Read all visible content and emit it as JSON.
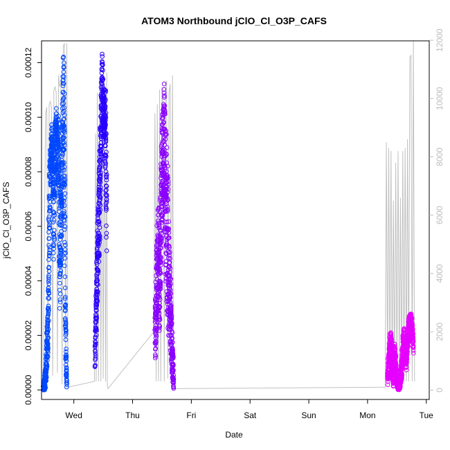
{
  "chart_data": {
    "type": "scatter",
    "title": "ATOM3 Northbound jClO_Cl_O3P_CAFS",
    "xlabel": "Date",
    "ylabel": "jClO_Cl_O3P_CAFS",
    "x_ticks": [
      "Wed",
      "Thu",
      "Fri",
      "Sat",
      "Sun",
      "Mon",
      "Tue"
    ],
    "x_tick_days": [
      1,
      2,
      3,
      4,
      5,
      6,
      7
    ],
    "xlim": [
      0.45,
      7.05
    ],
    "y_ticks": [
      "0.00000",
      "0.00002",
      "0.00004",
      "0.00006",
      "0.00008",
      "0.00010",
      "0.00012"
    ],
    "y_tick_values": [
      0,
      2e-05,
      4e-05,
      6e-05,
      8e-05,
      0.0001,
      0.00012
    ],
    "ylim": [
      -3.5e-06,
      0.000128
    ],
    "y2_ticks": [
      "0",
      "2000",
      "4000",
      "6000",
      "8000",
      "10000",
      "12000"
    ],
    "y2_tick_values": [
      0,
      2000,
      4000,
      6000,
      8000,
      10000,
      12000
    ],
    "y2lim": [
      -320,
      11980
    ],
    "grid": false,
    "colors": {
      "flight1": "#0047ff",
      "flight2": "#2800ff",
      "flight3": "#8a00ff",
      "flight4": "#e600ff",
      "altitude": "#c0c0c0"
    },
    "series": [
      {
        "flight": 1,
        "x": [
          0.48,
          0.5,
          0.52,
          0.54,
          0.56,
          0.58,
          0.6,
          0.62,
          0.64,
          0.66,
          0.68,
          0.7,
          0.72,
          0.74,
          0.76,
          0.78,
          0.8,
          0.82,
          0.84,
          0.86,
          0.88
        ],
        "y": [
          5e-07,
          2e-06,
          5e-06,
          1.5e-05,
          2.2e-05,
          6e-05,
          8e-05,
          9e-05,
          8.5e-05,
          6e-05,
          8.8e-05,
          9.9e-05,
          8.5e-05,
          8.6e-05,
          4.5e-05,
          6e-05,
          8e-05,
          0.000105,
          8.5e-05,
          2e-05,
          1e-06
        ],
        "spread": [
          1e-06,
          3e-06,
          4e-06,
          8e-06,
          1e-05,
          2e-05,
          1.2e-05,
          8e-06,
          1e-05,
          2e-05,
          1e-05,
          5e-06,
          1e-05,
          1.5e-05,
          2e-05,
          2e-05,
          2e-05,
          2e-05,
          3e-05,
          1e-05,
          1e-06
        ]
      },
      {
        "flight": 2,
        "x": [
          1.36,
          1.38,
          1.4,
          1.42,
          1.44,
          1.46,
          1.48,
          1.5,
          1.52,
          1.54,
          1.56
        ],
        "y": [
          1e-05,
          3e-05,
          4.5e-05,
          6e-05,
          7e-05,
          9.5e-05,
          0.00011,
          0.000103,
          0.0001,
          9e-05,
          6e-05
        ],
        "spread": [
          6e-06,
          1e-05,
          1.5e-05,
          1.5e-05,
          2e-05,
          1.5e-05,
          1.5e-05,
          1e-05,
          1e-05,
          2e-05,
          2e-05
        ]
      },
      {
        "flight": 3,
        "x": [
          2.38,
          2.4,
          2.42,
          2.44,
          2.46,
          2.48,
          2.5,
          2.52,
          2.54,
          2.56,
          2.58,
          2.6,
          2.62,
          2.64,
          2.66,
          2.68,
          2.7
        ],
        "y": [
          2e-05,
          3e-05,
          4.5e-05,
          5e-05,
          4e-05,
          6e-05,
          8e-05,
          8.5e-05,
          9.5e-05,
          7e-05,
          6.5e-05,
          5e-05,
          4e-05,
          3e-05,
          2e-05,
          1e-05,
          4e-06
        ],
        "spread": [
          1e-05,
          1.5e-05,
          2e-05,
          2e-05,
          2e-05,
          2e-05,
          2e-05,
          2e-05,
          2e-05,
          3e-05,
          3e-05,
          3e-05,
          2e-05,
          1.5e-05,
          1e-05,
          8e-06,
          4e-06
        ]
      },
      {
        "flight": 4,
        "x": [
          6.34,
          6.36,
          6.38,
          6.4,
          6.42,
          6.44,
          6.46,
          6.48,
          6.5,
          6.52,
          6.54,
          6.56,
          6.58,
          6.6,
          6.62,
          6.64,
          6.66,
          6.68,
          6.7,
          6.72,
          6.74,
          6.76,
          6.78
        ],
        "y": [
          4e-06,
          1e-05,
          1.5e-05,
          1.6e-05,
          1e-05,
          5e-06,
          1.2e-05,
          8e-06,
          3e-06,
          1e-06,
          2e-06,
          4e-06,
          8e-06,
          1.5e-05,
          2e-05,
          1.5e-05,
          1.2e-05,
          1.8e-05,
          2.2e-05,
          2.5e-05,
          2.6e-05,
          2.2e-05,
          1.6e-05
        ],
        "spread": [
          3e-06,
          5e-06,
          6e-06,
          5e-06,
          6e-06,
          4e-06,
          6e-06,
          5e-06,
          2e-06,
          1e-06,
          2e-06,
          3e-06,
          4e-06,
          5e-06,
          4e-06,
          5e-06,
          5e-06,
          4e-06,
          4e-06,
          3e-06,
          2e-06,
          4e-06,
          4e-06
        ]
      }
    ],
    "altitude": {
      "x": [
        0.48,
        0.5,
        0.52,
        0.54,
        0.56,
        0.58,
        0.6,
        0.62,
        0.64,
        0.66,
        0.68,
        0.7,
        0.72,
        0.74,
        0.76,
        0.78,
        0.8,
        0.82,
        0.84,
        0.86,
        0.88,
        0.9,
        0.9,
        1.35,
        1.37,
        1.38,
        1.4,
        1.42,
        1.44,
        1.46,
        1.48,
        1.5,
        1.52,
        1.54,
        1.56,
        1.57,
        1.58,
        2.36,
        2.38,
        2.4,
        2.42,
        2.44,
        2.46,
        2.48,
        2.5,
        2.52,
        2.54,
        2.56,
        2.58,
        2.6,
        2.62,
        2.64,
        2.66,
        2.68,
        2.7,
        2.7,
        6.3,
        6.32,
        6.34,
        6.36,
        6.38,
        6.4,
        6.42,
        6.44,
        6.46,
        6.48,
        6.5,
        6.52,
        6.54,
        6.56,
        6.58,
        6.6,
        6.62,
        6.64,
        6.66,
        6.68,
        6.7,
        6.72,
        6.74,
        6.76,
        6.78,
        6.8
      ],
      "y": [
        200,
        5500,
        9500,
        9700,
        600,
        9800,
        9900,
        9700,
        500,
        10300,
        10400,
        10200,
        600,
        10800,
        10400,
        10600,
        200,
        11800,
        11900,
        300,
        11900,
        300,
        100,
        300,
        8800,
        300,
        10200,
        300,
        10700,
        300,
        10800,
        400,
        10700,
        300,
        10900,
        200,
        50,
        2000,
        9500,
        300,
        9800,
        300,
        10300,
        300,
        10400,
        9700,
        300,
        10500,
        10600,
        400,
        10200,
        10500,
        300,
        10800,
        200,
        50,
        100,
        8500,
        300,
        8300,
        300,
        8200,
        300,
        6500,
        300,
        7800,
        300,
        8200,
        300,
        6600,
        300,
        8200,
        300,
        8300,
        300,
        8600,
        300,
        11400,
        11500,
        300,
        12000,
        300
      ]
    }
  }
}
